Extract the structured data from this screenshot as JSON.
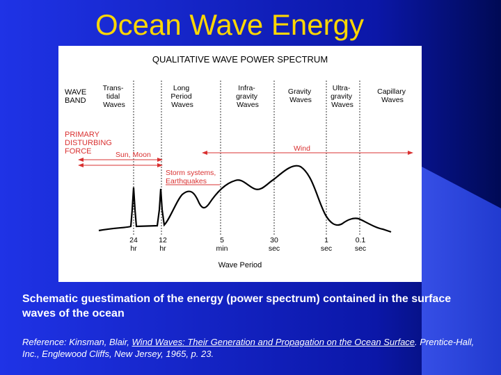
{
  "slide": {
    "title": "Ocean Wave Energy",
    "caption": "Schematic guestimation of the energy (power spectrum) contained in the surface waves of the ocean",
    "reference": {
      "prefix": "Reference: Kinsman, Blair, ",
      "book_title": "Wind Waves: Their Generation and Propagation on the Ocean Surface",
      "suffix": ". Prentice-Hall, Inc., Englewood Cliffs, New Jersey, 1965, p. 23."
    },
    "colors": {
      "title": "#ffd700",
      "accent": "#d93030",
      "background": "#1b2bd6"
    }
  },
  "figure": {
    "title": "QUALITATIVE WAVE POWER SPECTRUM",
    "wave_band_label": [
      "WAVE",
      "BAND"
    ],
    "bands": [
      {
        "lines": [
          "Trans-",
          "tidal",
          "Waves"
        ]
      },
      {
        "lines": [
          "Long",
          "Period",
          "Waves"
        ]
      },
      {
        "lines": [
          "Infra-",
          "gravity",
          "Waves"
        ]
      },
      {
        "lines": [
          "Gravity",
          "Waves"
        ]
      },
      {
        "lines": [
          "Ultra-",
          "gravity",
          "Waves"
        ]
      },
      {
        "lines": [
          "Capillary",
          "Waves"
        ]
      }
    ],
    "force_label": [
      "PRIMARY",
      "DISTURBING",
      "FORCE"
    ],
    "forces": {
      "sun_moon": "Sun, Moon",
      "wind": "Wind",
      "storm": [
        "Storm systems,",
        "Earthquakes"
      ]
    },
    "ticks": [
      {
        "value": "24",
        "unit": "hr"
      },
      {
        "value": "12",
        "unit": "hr"
      },
      {
        "value": "5",
        "unit": "min"
      },
      {
        "value": "30",
        "unit": "sec"
      },
      {
        "value": "1",
        "unit": "sec"
      },
      {
        "value": "0.1",
        "unit": "sec"
      }
    ],
    "xlabel": "Wave Period"
  }
}
